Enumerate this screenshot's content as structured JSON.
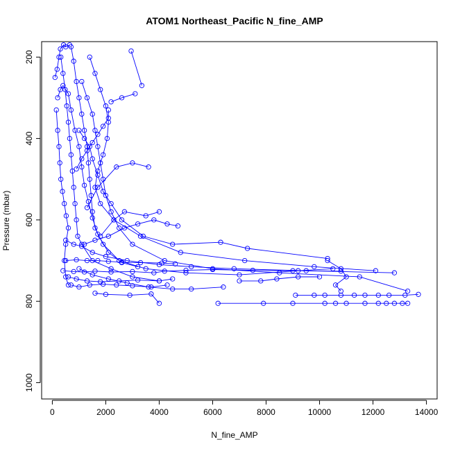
{
  "chart_data": {
    "type": "scatter",
    "title": "ATOM1 Northeast_Pacific N_fine_AMP",
    "xlabel": "N_fine_AMP",
    "ylabel": "Pressure (mbar)",
    "xlim": [
      -400,
      14400
    ],
    "ylim": [
      1040,
      162
    ],
    "y_inverted": true,
    "x_ticks": [
      0,
      2000,
      4000,
      6000,
      8000,
      10000,
      12000,
      14000
    ],
    "y_ticks": [
      200,
      400,
      600,
      800,
      1000
    ],
    "x_tick_labels": [
      "0",
      "2000",
      "4000",
      "6000",
      "8000",
      "10000",
      "12000",
      "14000"
    ],
    "y_tick_labels": [
      "200",
      "400",
      "600",
      "800",
      "1000"
    ],
    "grid": false,
    "legend": "none",
    "series": [
      {
        "points": [
          [
            100,
            250
          ],
          [
            180,
            230
          ],
          [
            250,
            200
          ],
          [
            300,
            180
          ],
          [
            420,
            170
          ],
          [
            500,
            175
          ],
          [
            650,
            170
          ]
        ]
      },
      {
        "points": [
          [
            150,
            330
          ],
          [
            200,
            380
          ],
          [
            250,
            420
          ],
          [
            280,
            460
          ],
          [
            320,
            500
          ],
          [
            380,
            530
          ],
          [
            450,
            560
          ],
          [
            520,
            590
          ],
          [
            600,
            620
          ],
          [
            500,
            660
          ],
          [
            450,
            700
          ],
          [
            500,
            740
          ],
          [
            600,
            760
          ]
        ]
      },
      {
        "points": [
          [
            320,
            200
          ],
          [
            400,
            240
          ],
          [
            480,
            280
          ],
          [
            540,
            320
          ],
          [
            600,
            360
          ],
          [
            650,
            400
          ],
          [
            700,
            440
          ],
          [
            750,
            480
          ],
          [
            800,
            520
          ],
          [
            850,
            560
          ],
          [
            900,
            600
          ],
          [
            950,
            640
          ],
          [
            1100,
            660
          ],
          [
            1500,
            700
          ],
          [
            2200,
            720
          ],
          [
            3000,
            740
          ],
          [
            4000,
            750
          ]
        ]
      },
      {
        "points": [
          [
            700,
            175
          ],
          [
            800,
            210
          ],
          [
            900,
            260
          ],
          [
            1000,
            300
          ],
          [
            1100,
            340
          ],
          [
            1200,
            380
          ],
          [
            1300,
            420
          ],
          [
            1350,
            460
          ],
          [
            1400,
            500
          ],
          [
            1450,
            540
          ],
          [
            1500,
            580
          ],
          [
            1600,
            620
          ],
          [
            1900,
            660
          ],
          [
            2500,
            700
          ],
          [
            3500,
            720
          ],
          [
            5000,
            730
          ],
          [
            7000,
            735
          ],
          [
            9200,
            725
          ],
          [
            10500,
            720
          ]
        ]
      },
      {
        "points": [
          [
            1100,
            260
          ],
          [
            1300,
            300
          ],
          [
            1500,
            340
          ],
          [
            1600,
            380
          ],
          [
            1700,
            420
          ],
          [
            1800,
            460
          ],
          [
            1900,
            500
          ],
          [
            2000,
            540
          ],
          [
            2200,
            580
          ],
          [
            2500,
            620
          ],
          [
            3000,
            660
          ],
          [
            4200,
            700
          ],
          [
            6000,
            720
          ],
          [
            8500,
            730
          ],
          [
            11500,
            740
          ],
          [
            13300,
            775
          ]
        ]
      },
      {
        "points": [
          [
            1400,
            200
          ],
          [
            1600,
            240
          ],
          [
            1800,
            280
          ],
          [
            2000,
            320
          ],
          [
            2100,
            360
          ],
          [
            2050,
            400
          ],
          [
            1900,
            440
          ],
          [
            1700,
            480
          ],
          [
            1600,
            520
          ],
          [
            1800,
            560
          ],
          [
            2300,
            600
          ],
          [
            3300,
            640
          ],
          [
            4800,
            680
          ],
          [
            7200,
            700
          ],
          [
            9800,
            715
          ],
          [
            12100,
            725
          ]
        ]
      },
      {
        "points": [
          [
            2950,
            185
          ],
          [
            3350,
            270
          ]
        ]
      },
      {
        "points": [
          [
            2200,
            310
          ],
          [
            2600,
            300
          ],
          [
            3100,
            290
          ]
        ]
      },
      {
        "points": [
          [
            1000,
            380
          ],
          [
            1200,
            400
          ],
          [
            1400,
            420
          ],
          [
            1500,
            450
          ],
          [
            1700,
            490
          ],
          [
            1900,
            530
          ],
          [
            2200,
            560
          ],
          [
            2600,
            600
          ],
          [
            3400,
            640
          ],
          [
            4500,
            660
          ],
          [
            6300,
            655
          ],
          [
            7300,
            670
          ],
          [
            10300,
            695
          ]
        ]
      },
      {
        "points": [
          [
            500,
            650
          ],
          [
            800,
            660
          ],
          [
            1100,
            665
          ],
          [
            1500,
            680
          ],
          [
            2000,
            690
          ],
          [
            2800,
            700
          ],
          [
            4000,
            710
          ],
          [
            5200,
            715
          ],
          [
            6800,
            720
          ],
          [
            9500,
            725
          ],
          [
            12800,
            730
          ]
        ]
      },
      {
        "points": [
          [
            600,
            740
          ],
          [
            900,
            745
          ],
          [
            1300,
            750
          ],
          [
            1800,
            752
          ],
          [
            2500,
            750
          ],
          [
            3200,
            748
          ],
          [
            4000,
            750
          ],
          [
            4500,
            745
          ]
        ]
      },
      {
        "points": [
          [
            700,
            760
          ],
          [
            1000,
            765
          ],
          [
            1400,
            760
          ],
          [
            1900,
            758
          ],
          [
            2400,
            760
          ],
          [
            3000,
            762
          ],
          [
            3700,
            765
          ],
          [
            4300,
            760
          ]
        ]
      },
      {
        "points": [
          [
            1600,
            780
          ],
          [
            2000,
            783
          ],
          [
            2900,
            785
          ],
          [
            3700,
            782
          ],
          [
            4000,
            805
          ]
        ]
      },
      {
        "points": [
          [
            6200,
            805
          ],
          [
            7900,
            805
          ],
          [
            9000,
            805
          ],
          [
            10200,
            805
          ],
          [
            10600,
            805
          ],
          [
            11000,
            805
          ],
          [
            11700,
            805
          ],
          [
            12200,
            805
          ],
          [
            12500,
            805
          ],
          [
            12800,
            805
          ],
          [
            13100,
            805
          ],
          [
            13300,
            805
          ]
        ]
      },
      {
        "points": [
          [
            9100,
            785
          ],
          [
            9800,
            785
          ],
          [
            10200,
            785
          ],
          [
            10800,
            785
          ],
          [
            11300,
            785
          ],
          [
            11700,
            785
          ],
          [
            12200,
            785
          ],
          [
            12600,
            785
          ],
          [
            13200,
            785
          ],
          [
            13700,
            783
          ]
        ]
      },
      {
        "points": [
          [
            400,
            725
          ],
          [
            800,
            727
          ],
          [
            1200,
            728
          ],
          [
            1600,
            726
          ],
          [
            2200,
            728
          ],
          [
            3000,
            727
          ],
          [
            3800,
            730
          ],
          [
            4200,
            726
          ],
          [
            5000,
            724
          ],
          [
            6000,
            722
          ],
          [
            7500,
            724
          ],
          [
            9000,
            725
          ],
          [
            10800,
            726
          ]
        ]
      },
      {
        "points": [
          [
            500,
            700
          ],
          [
            900,
            698
          ],
          [
            1300,
            700
          ],
          [
            1700,
            700
          ],
          [
            2100,
            702
          ],
          [
            2600,
            704
          ],
          [
            3300,
            705
          ],
          [
            4100,
            706
          ],
          [
            4600,
            708
          ]
        ]
      },
      {
        "points": [
          [
            1800,
            640
          ],
          [
            2300,
            600
          ],
          [
            2700,
            580
          ],
          [
            3500,
            590
          ],
          [
            4000,
            580
          ]
        ]
      },
      {
        "points": [
          [
            1300,
            570
          ],
          [
            1700,
            520
          ],
          [
            2400,
            470
          ],
          [
            3000,
            460
          ],
          [
            3600,
            470
          ]
        ]
      },
      {
        "points": [
          [
            1000,
            720
          ],
          [
            1500,
            735
          ],
          [
            2100,
            745
          ],
          [
            2800,
            755
          ],
          [
            3600,
            765
          ],
          [
            4500,
            770
          ],
          [
            5200,
            770
          ],
          [
            6400,
            765
          ]
        ]
      },
      {
        "points": [
          [
            10300,
            700
          ],
          [
            10800,
            720
          ],
          [
            11000,
            740
          ],
          [
            10600,
            760
          ],
          [
            10800,
            775
          ]
        ]
      },
      {
        "points": [
          [
            7000,
            750
          ],
          [
            7800,
            750
          ],
          [
            8400,
            745
          ],
          [
            9200,
            740
          ],
          [
            10000,
            740
          ]
        ]
      },
      {
        "points": [
          [
            1200,
            660
          ],
          [
            1600,
            650
          ],
          [
            2100,
            640
          ],
          [
            2700,
            620
          ],
          [
            3200,
            610
          ],
          [
            3800,
            600
          ],
          [
            4300,
            610
          ],
          [
            4700,
            615
          ]
        ]
      },
      {
        "points": [
          [
            900,
            475
          ],
          [
            1100,
            450
          ],
          [
            1300,
            430
          ],
          [
            1500,
            410
          ],
          [
            1700,
            390
          ],
          [
            1900,
            370
          ],
          [
            2100,
            350
          ],
          [
            2100,
            330
          ]
        ]
      },
      {
        "points": [
          [
            200,
            300
          ],
          [
            300,
            280
          ],
          [
            400,
            270
          ],
          [
            600,
            290
          ],
          [
            700,
            330
          ],
          [
            850,
            380
          ],
          [
            1000,
            420
          ],
          [
            1100,
            470
          ],
          [
            1200,
            515
          ],
          [
            1350,
            555
          ],
          [
            1500,
            595
          ],
          [
            1700,
            635
          ],
          [
            2100,
            680
          ],
          [
            2600,
            705
          ],
          [
            3200,
            715
          ]
        ]
      }
    ]
  }
}
